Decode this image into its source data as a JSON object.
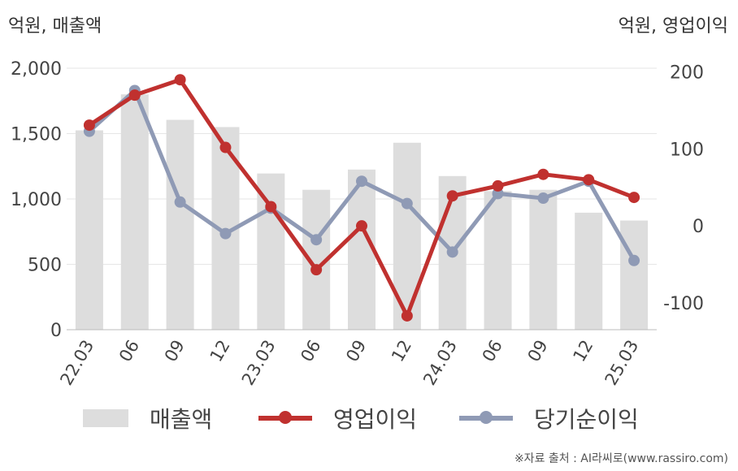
{
  "units": {
    "left": "억원, 매출액",
    "right": "억원, 영업이익"
  },
  "chart_data": {
    "type": "bar+line",
    "categories": [
      "22.03",
      "06",
      "09",
      "12",
      "23.03",
      "06",
      "09",
      "12",
      "24.03",
      "06",
      "09",
      "12",
      "25.03"
    ],
    "left_axis": {
      "ticks": [
        "0",
        "500",
        "1,000",
        "1,500",
        "2,000"
      ],
      "ylim": [
        0,
        2000
      ]
    },
    "right_axis": {
      "ticks": [
        "-100",
        "0",
        "100",
        "200"
      ],
      "ylim": [
        -135,
        205
      ]
    },
    "grid": true,
    "legend_position": "bottom",
    "series": [
      {
        "name": "매출액",
        "type": "bar",
        "axis": "left",
        "color": "#dddddd",
        "values": [
          1525,
          1800,
          1605,
          1550,
          1195,
          1070,
          1225,
          1430,
          1175,
          1060,
          1070,
          895,
          835
        ]
      },
      {
        "name": "영업이익",
        "type": "line",
        "axis": "right",
        "color": "#c0312f",
        "values": [
          131,
          170,
          190,
          102,
          25,
          -57,
          0,
          -117,
          39,
          52,
          67,
          60,
          37
        ]
      },
      {
        "name": "당기순이익",
        "type": "line",
        "axis": "right",
        "color": "#8f9ab5",
        "values": [
          123,
          176,
          31,
          -10,
          23,
          -18,
          58,
          29,
          -34,
          42,
          36,
          58,
          -45
        ]
      }
    ]
  },
  "legend": [
    {
      "label": "매출액",
      "color": "#dddddd"
    },
    {
      "label": "영업이익",
      "color": "#c0312f"
    },
    {
      "label": "당기순이익",
      "color": "#8f9ab5"
    }
  ],
  "source": "※자료 출처 : AI라씨로(www.rassiro.com)"
}
